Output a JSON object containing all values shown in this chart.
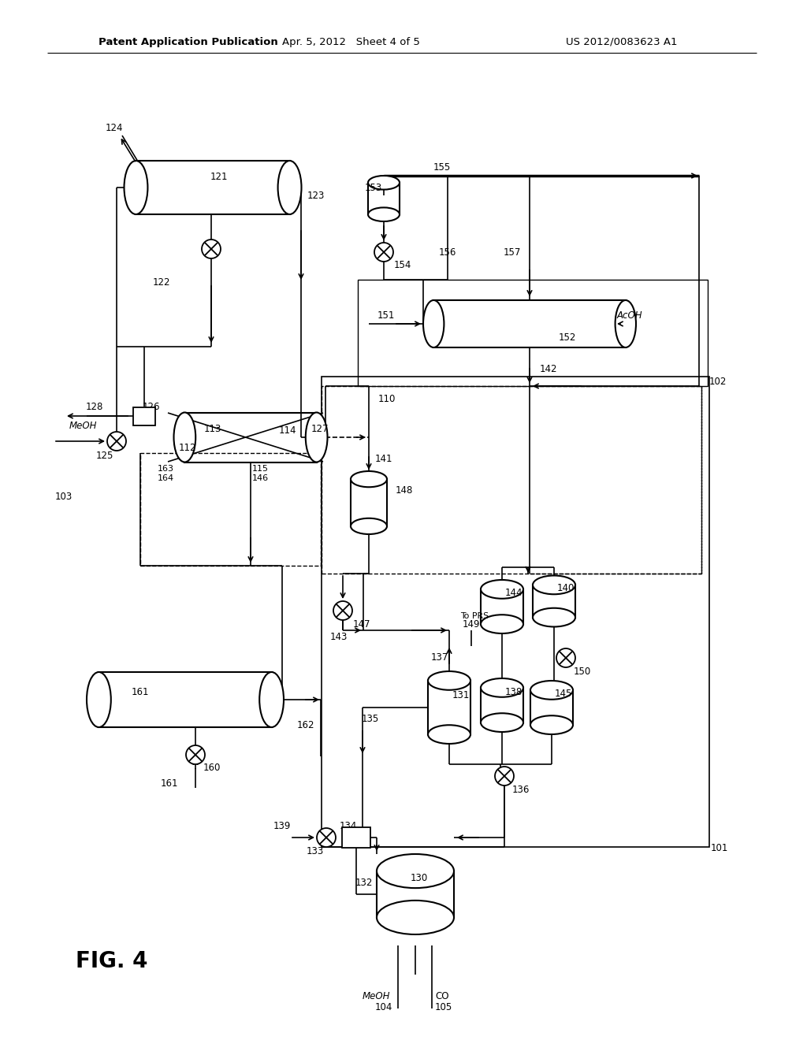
{
  "header_left": "Patent Application Publication",
  "header_mid": "Apr. 5, 2012   Sheet 4 of 5",
  "header_right": "US 2012/0083623 A1",
  "fig_label": "FIG. 4",
  "bg": "#ffffff"
}
